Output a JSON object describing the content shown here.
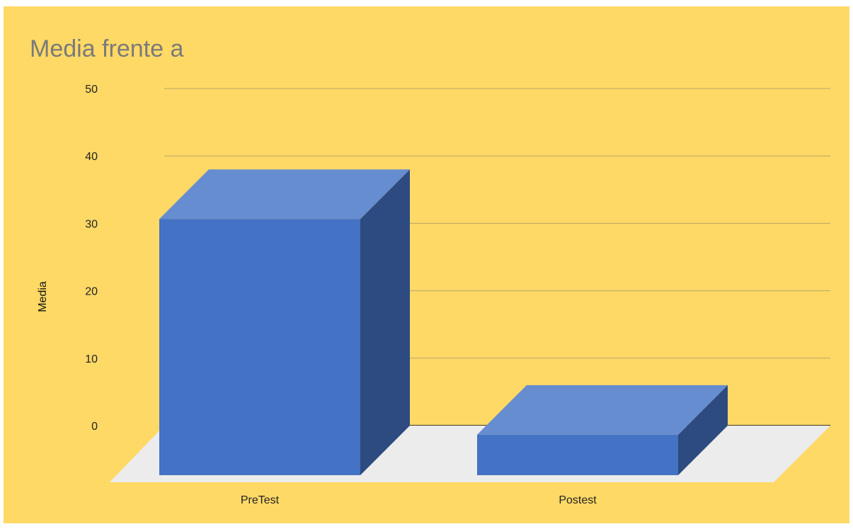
{
  "chart_data": {
    "type": "bar",
    "title": "Media frente a",
    "xlabel": "",
    "ylabel": "Media",
    "categories": [
      "PreTest",
      "Postest"
    ],
    "values": [
      38,
      6
    ],
    "ylim": [
      0,
      50
    ],
    "yticks": [
      0,
      10,
      20,
      30,
      40,
      50
    ],
    "grid": true,
    "legend": "none",
    "style": "3d-column"
  },
  "colors": {
    "background": "#ffd966",
    "bar_front": "#4472c4",
    "bar_top": "#668dcf",
    "bar_side": "#2d4b80",
    "floor": "#ececec",
    "gridline": "#b7a66a",
    "baseline": "#000000"
  }
}
